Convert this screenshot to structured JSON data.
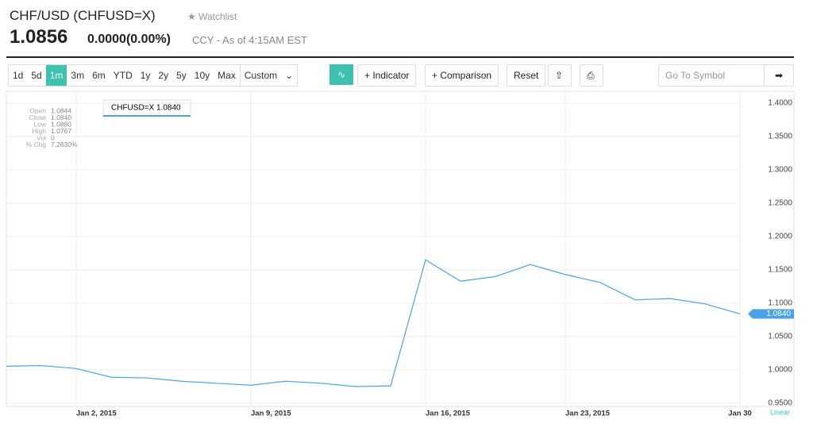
{
  "header": {
    "title": "CHF/USD (CHFUSD=X)",
    "watchlist": "Watchlist",
    "price": "1.0856",
    "change": "0.0000(0.00%)",
    "status": "CCY - As of 4:15AM EST"
  },
  "toolbar": {
    "ranges": [
      "1d",
      "5d",
      "1m",
      "3m",
      "6m",
      "YTD",
      "1y",
      "2y",
      "5y",
      "10y",
      "Max"
    ],
    "active": "1m",
    "custom": "Custom",
    "indicator": "Indicator",
    "comparison": "Comparison",
    "reset": "Reset",
    "symbol_placeholder": "Go To Symbol"
  },
  "info": {
    "rows": [
      [
        "Open",
        "1.0844"
      ],
      [
        "Close",
        "1.0840"
      ],
      [
        "Low",
        "1.0880"
      ],
      [
        "High",
        "1.0767"
      ],
      [
        "Vol",
        "0"
      ],
      [
        "% Chg",
        "7.2630%"
      ]
    ],
    "legend_value": "1.0840",
    "current_value": "1.0840",
    "scale": "Linear"
  },
  "chart_data": {
    "type": "line",
    "categories": [
      null,
      null,
      "Jan 2, 2015",
      null,
      null,
      null,
      null,
      "Jan 9, 2015",
      null,
      null,
      null,
      null,
      "Jan 16, 2015",
      null,
      null,
      null,
      "Jan 23, 2015",
      null,
      null,
      null,
      null,
      "Jan 30"
    ],
    "series": [
      {
        "name": "CHFUSD=X",
        "color": "#4aa3e8",
        "values": [
          1.0055,
          1.0065,
          1.002,
          0.989,
          0.988,
          0.983,
          0.98,
          0.977,
          0.983,
          0.98,
          0.975,
          0.976,
          1.165,
          1.133,
          1.14,
          1.158,
          1.143,
          1.131,
          1.105,
          1.107,
          1.099,
          1.084
        ]
      }
    ],
    "ylim": [
      0.95,
      1.4
    ],
    "yticks": [
      {
        "value": 0.95,
        "label": "0.9500"
      },
      {
        "value": 1.0,
        "label": "1.0000"
      },
      {
        "value": 1.05,
        "label": "1.0500"
      },
      {
        "value": 1.1,
        "label": "1.1000"
      },
      {
        "value": 1.15,
        "label": "1.1500"
      },
      {
        "value": 1.2,
        "label": "1.2000"
      },
      {
        "value": 1.25,
        "label": "1.2500"
      },
      {
        "value": 1.3,
        "label": "1.3000"
      },
      {
        "value": 1.35,
        "label": "1.3500"
      },
      {
        "value": 1.4,
        "label": "1.4000"
      }
    ],
    "grid": true
  }
}
